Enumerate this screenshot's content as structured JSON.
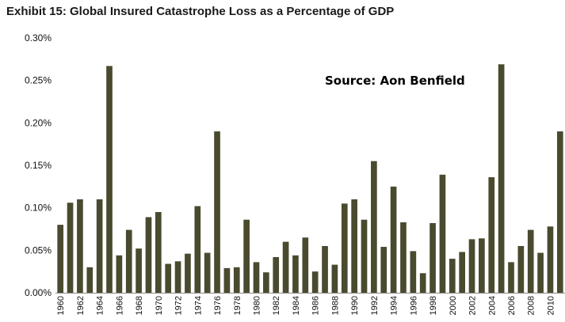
{
  "title": "Exhibit 15: Global Insured Catastrophe Loss as a Percentage of GDP",
  "chart_data": {
    "type": "bar",
    "title": "Exhibit 15: Global Insured Catastrophe Loss as a Percentage of GDP",
    "xlabel": "",
    "ylabel": "",
    "ylim": [
      0,
      0.3
    ],
    "y_ticks": [
      "0.00%",
      "0.05%",
      "0.10%",
      "0.15%",
      "0.20%",
      "0.25%",
      "0.30%"
    ],
    "y_tick_values": [
      0,
      0.05,
      0.1,
      0.15,
      0.2,
      0.25,
      0.3
    ],
    "bar_color": "#4a4a2f",
    "grid": false,
    "annotation": "Source: Aon Benfield",
    "categories": [
      "1960",
      "1961",
      "1962",
      "1963",
      "1964",
      "1965",
      "1966",
      "1967",
      "1968",
      "1969",
      "1970",
      "1971",
      "1972",
      "1973",
      "1974",
      "1975",
      "1976",
      "1977",
      "1978",
      "1979",
      "1980",
      "1981",
      "1982",
      "1983",
      "1984",
      "1985",
      "1986",
      "1987",
      "1988",
      "1989",
      "1990",
      "1991",
      "1992",
      "1993",
      "1994",
      "1995",
      "1996",
      "1997",
      "1998",
      "1999",
      "2000",
      "2001",
      "2002",
      "2003",
      "2004",
      "2005",
      "2006",
      "2007",
      "2008",
      "2009",
      "2010",
      "2011"
    ],
    "x_tick_labels": [
      "1960",
      "1962",
      "1964",
      "1966",
      "1968",
      "1970",
      "1972",
      "1974",
      "1976",
      "1978",
      "1980",
      "1982",
      "1984",
      "1986",
      "1988",
      "1990",
      "1992",
      "1994",
      "1996",
      "1998",
      "2000",
      "2002",
      "2004",
      "2006",
      "2008",
      "2010"
    ],
    "values": [
      0.08,
      0.106,
      0.11,
      0.03,
      0.11,
      0.267,
      0.044,
      0.074,
      0.052,
      0.089,
      0.095,
      0.034,
      0.037,
      0.046,
      0.102,
      0.047,
      0.19,
      0.029,
      0.03,
      0.086,
      0.036,
      0.024,
      0.042,
      0.06,
      0.044,
      0.065,
      0.025,
      0.055,
      0.033,
      0.105,
      0.11,
      0.086,
      0.155,
      0.054,
      0.125,
      0.083,
      0.049,
      0.023,
      0.082,
      0.139,
      0.04,
      0.048,
      0.063,
      0.064,
      0.136,
      0.269,
      0.036,
      0.055,
      0.074,
      0.047,
      0.078,
      0.19
    ]
  }
}
